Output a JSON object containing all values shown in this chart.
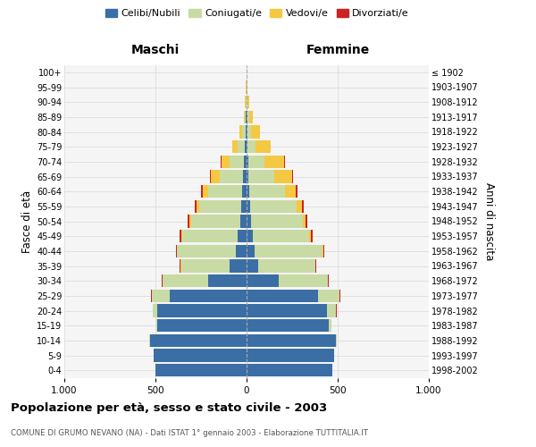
{
  "age_groups": [
    "0-4",
    "5-9",
    "10-14",
    "15-19",
    "20-24",
    "25-29",
    "30-34",
    "35-39",
    "40-44",
    "45-49",
    "50-54",
    "55-59",
    "60-64",
    "65-69",
    "70-74",
    "75-79",
    "80-84",
    "85-89",
    "90-94",
    "95-99",
    "100+"
  ],
  "birth_years": [
    "1998-2002",
    "1993-1997",
    "1988-1992",
    "1983-1987",
    "1978-1982",
    "1973-1977",
    "1968-1972",
    "1963-1967",
    "1958-1962",
    "1953-1957",
    "1948-1952",
    "1943-1947",
    "1938-1942",
    "1933-1937",
    "1928-1932",
    "1923-1927",
    "1918-1922",
    "1913-1917",
    "1908-1912",
    "1903-1907",
    "≤ 1902"
  ],
  "maschi": {
    "celibi": [
      500,
      510,
      530,
      490,
      490,
      420,
      210,
      95,
      60,
      50,
      35,
      30,
      25,
      18,
      14,
      9,
      5,
      3,
      2,
      1,
      0
    ],
    "coniugati": [
      0,
      1,
      2,
      5,
      25,
      100,
      250,
      265,
      320,
      305,
      270,
      230,
      185,
      130,
      80,
      40,
      18,
      8,
      3,
      1,
      0
    ],
    "vedovi": [
      0,
      0,
      0,
      0,
      0,
      1,
      1,
      2,
      2,
      5,
      8,
      15,
      30,
      50,
      45,
      30,
      15,
      6,
      3,
      1,
      0
    ],
    "divorziati": [
      0,
      0,
      0,
      0,
      2,
      4,
      5,
      5,
      6,
      8,
      10,
      10,
      8,
      5,
      2,
      0,
      0,
      0,
      0,
      0,
      0
    ]
  },
  "femmine": {
    "nubili": [
      470,
      480,
      490,
      450,
      440,
      390,
      175,
      65,
      45,
      35,
      25,
      20,
      15,
      10,
      8,
      5,
      3,
      3,
      2,
      1,
      0
    ],
    "coniugate": [
      0,
      1,
      3,
      15,
      50,
      120,
      270,
      310,
      370,
      310,
      285,
      255,
      195,
      140,
      90,
      45,
      22,
      10,
      4,
      2,
      0
    ],
    "vedove": [
      0,
      0,
      0,
      0,
      1,
      2,
      2,
      3,
      5,
      8,
      15,
      30,
      60,
      100,
      110,
      80,
      50,
      20,
      8,
      3,
      0
    ],
    "divorziate": [
      0,
      0,
      0,
      0,
      2,
      4,
      5,
      5,
      6,
      8,
      10,
      10,
      8,
      5,
      3,
      1,
      0,
      0,
      0,
      0,
      0
    ]
  },
  "colors": {
    "celibi": "#3a6ea5",
    "coniugati": "#c8dba4",
    "vedovi": "#f5c842",
    "divorziati": "#cc2222"
  },
  "xlim": 1000,
  "title": "Popolazione per età, sesso e stato civile - 2003",
  "subtitle": "COMUNE DI GRUMO NEVANO (NA) - Dati ISTAT 1° gennaio 2003 - Elaborazione TUTTITALIA.IT",
  "ylabel_left": "Fasce di età",
  "ylabel_right": "Anni di nascita",
  "xlabel_left": "Maschi",
  "xlabel_right": "Femmine",
  "bg_color": "#f5f5f5",
  "grid_color": "#dddddd"
}
